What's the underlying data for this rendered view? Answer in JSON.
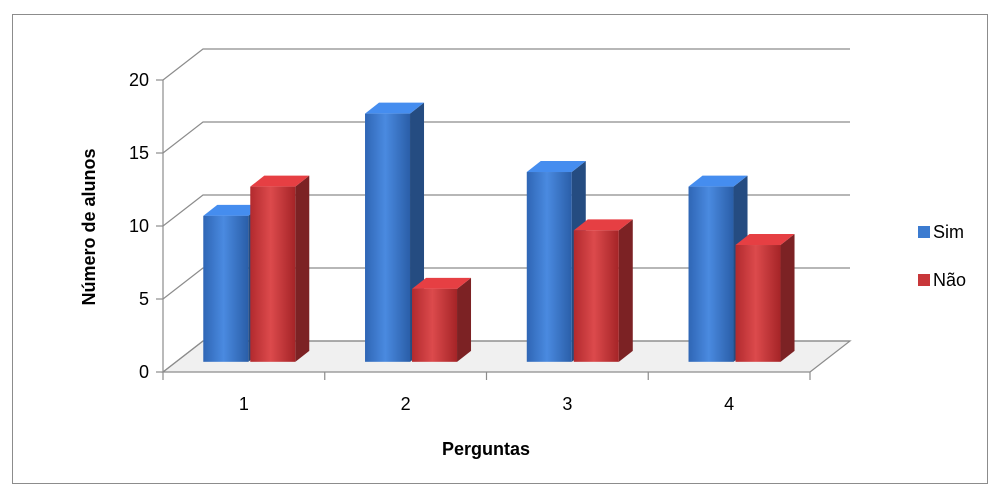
{
  "chart_data": {
    "type": "bar",
    "title": "",
    "xlabel": "Perguntas",
    "ylabel": "Número de alunos",
    "categories": [
      "1",
      "2",
      "3",
      "4"
    ],
    "ylim": [
      0,
      20
    ],
    "yticks": [
      "0",
      "5",
      "10",
      "15",
      "20"
    ],
    "grid": true,
    "legend_position": "right",
    "series": [
      {
        "name": "Sim",
        "values": [
          10,
          17,
          13,
          12
        ],
        "color": "#3c7bd0"
      },
      {
        "name": "Não",
        "values": [
          12,
          5,
          9,
          8
        ],
        "color": "#c8373a"
      }
    ]
  }
}
